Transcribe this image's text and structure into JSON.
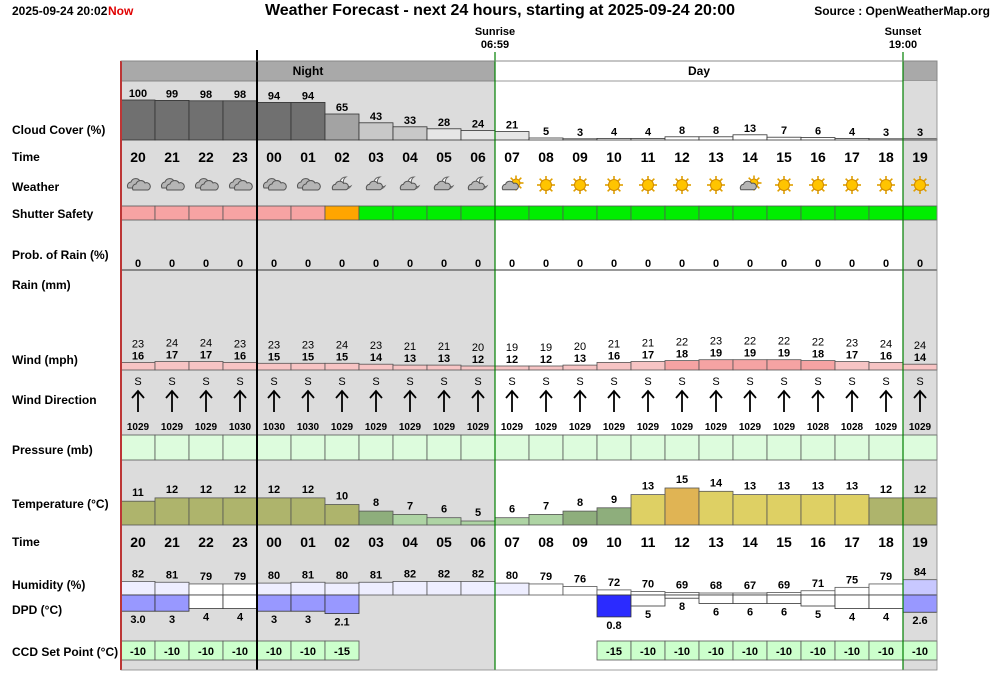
{
  "header": {
    "timestamp": "2025-09-24 20:02",
    "now_label": "Now",
    "title": "Weather Forecast - next 24 hours, starting at 2025-09-24 20:00",
    "source": "Source : OpenWeatherMap.org",
    "sunrise_label": "Sunrise",
    "sunrise_time": "06:59",
    "sunset_label": "Sunset",
    "sunset_time": "19:00",
    "night_label": "Night",
    "day_label": "Day"
  },
  "colors": {
    "night_bg": "#dcdcdc",
    "shutter_unsafe": "#f7a3a3",
    "shutter_marginal": "#ffa500",
    "shutter_safe": "#00ee00",
    "pressure_bg": "#ddfcdd",
    "setpoint_bg": "#ccffcc",
    "wind_bar": "#f7b8b8",
    "now_line": "#e00000",
    "sun_line": "#008000"
  },
  "chart_data": {
    "type": "table",
    "hours": [
      "20",
      "21",
      "22",
      "23",
      "00",
      "01",
      "02",
      "03",
      "04",
      "05",
      "06",
      "07",
      "08",
      "09",
      "10",
      "11",
      "12",
      "13",
      "14",
      "15",
      "16",
      "17",
      "18",
      "19"
    ],
    "rows": {
      "cloud_cover_label": "Cloud Cover (%)",
      "time_label": "Time",
      "weather_label": "Weather",
      "shutter_label": "Shutter Safety",
      "rain_prob_label": "Prob. of Rain (%)",
      "rain_label": "Rain (mm)",
      "wind_label": "Wind (mph)",
      "wind_dir_label": "Wind Direction",
      "pressure_label": "Pressure (mb)",
      "temperature_label": "Temperature (°C)",
      "humidity_label": "Humidity (%)",
      "dpd_label": "DPD (°C)",
      "setpoint_label": "CCD Set Point (°C)"
    },
    "cloud_cover": [
      100,
      99,
      98,
      98,
      94,
      94,
      65,
      43,
      33,
      28,
      24,
      21,
      5,
      3,
      4,
      4,
      8,
      8,
      13,
      7,
      6,
      4,
      3,
      3
    ],
    "weather_icons": [
      "cloud-icon",
      "cloud-icon",
      "cloud-icon",
      "cloud-icon",
      "cloud-icon",
      "cloud-icon",
      "moon-cloud-icon",
      "moon-cloud-icon",
      "moon-cloud-icon",
      "moon-cloud-icon",
      "moon-cloud-icon",
      "sun-cloud-icon",
      "sun-icon",
      "sun-icon",
      "sun-icon",
      "sun-icon",
      "sun-icon",
      "sun-icon",
      "sun-cloud-icon",
      "sun-icon",
      "sun-icon",
      "sun-icon",
      "sun-icon",
      "sun-icon"
    ],
    "shutter": [
      "unsafe",
      "unsafe",
      "unsafe",
      "unsafe",
      "unsafe",
      "unsafe",
      "marginal",
      "safe",
      "safe",
      "safe",
      "safe",
      "safe",
      "safe",
      "safe",
      "safe",
      "safe",
      "safe",
      "safe",
      "safe",
      "safe",
      "safe",
      "safe",
      "safe",
      "safe"
    ],
    "rain_prob": [
      0,
      0,
      0,
      0,
      0,
      0,
      0,
      0,
      0,
      0,
      0,
      0,
      0,
      0,
      0,
      0,
      0,
      0,
      0,
      0,
      0,
      0,
      0,
      0
    ],
    "wind_gust": [
      23,
      24,
      24,
      23,
      23,
      23,
      24,
      23,
      21,
      21,
      20,
      19,
      19,
      20,
      21,
      21,
      22,
      23,
      22,
      22,
      22,
      23,
      24,
      24
    ],
    "wind_speed": [
      16,
      17,
      17,
      16,
      15,
      15,
      15,
      14,
      13,
      13,
      12,
      12,
      12,
      13,
      16,
      17,
      18,
      19,
      19,
      19,
      18,
      17,
      16,
      14
    ],
    "wind_dir": [
      "S",
      "S",
      "S",
      "S",
      "S",
      "S",
      "S",
      "S",
      "S",
      "S",
      "S",
      "S",
      "S",
      "S",
      "S",
      "S",
      "S",
      "S",
      "S",
      "S",
      "S",
      "S",
      "S",
      "S"
    ],
    "wind_deg": [
      185,
      185,
      185,
      185,
      185,
      185,
      185,
      185,
      185,
      185,
      185,
      185,
      185,
      185,
      185,
      185,
      185,
      185,
      185,
      185,
      185,
      185,
      185,
      185
    ],
    "pressure": [
      1029,
      1029,
      1029,
      1030,
      1030,
      1030,
      1029,
      1029,
      1029,
      1029,
      1029,
      1029,
      1029,
      1029,
      1029,
      1029,
      1029,
      1029,
      1029,
      1029,
      1028,
      1028,
      1029,
      1029
    ],
    "temperature": [
      11,
      12,
      12,
      12,
      12,
      12,
      10,
      8,
      7,
      6,
      5,
      6,
      7,
      8,
      9,
      13,
      15,
      14,
      13,
      13,
      13,
      13,
      12,
      12
    ],
    "humidity": [
      82,
      81,
      79,
      79,
      80,
      81,
      80,
      81,
      82,
      82,
      82,
      80,
      79,
      76,
      72,
      70,
      69,
      68,
      67,
      69,
      71,
      75,
      79,
      84
    ],
    "dpd": [
      "3.0",
      "3",
      "4",
      "4",
      "3",
      "3",
      "2.1",
      null,
      null,
      null,
      null,
      null,
      null,
      null,
      "0.8",
      "5",
      "8",
      "6",
      "6",
      "6",
      "5",
      "4",
      "4",
      "2.6"
    ],
    "setpoint": [
      "-10",
      "-10",
      "-10",
      "-10",
      "-10",
      "-10",
      "-15",
      null,
      null,
      null,
      null,
      null,
      null,
      null,
      "-15",
      "-10",
      "-10",
      "-10",
      "-10",
      "-10",
      "-10",
      "-10",
      "-10",
      "-10"
    ]
  }
}
